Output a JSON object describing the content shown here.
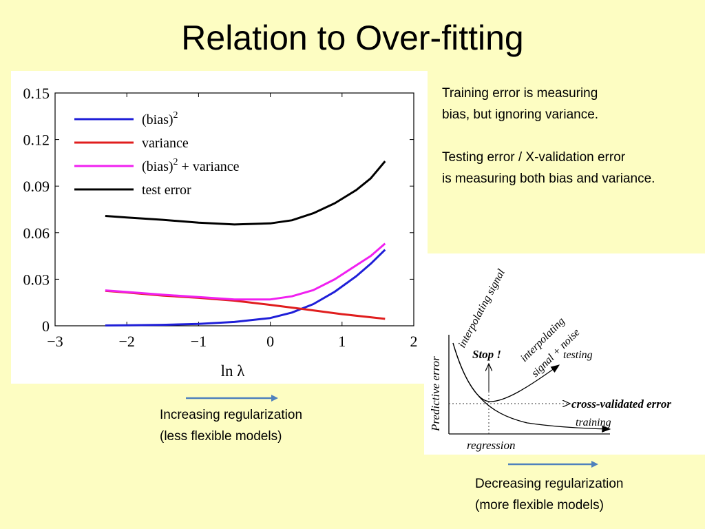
{
  "slide": {
    "title": "Relation to Over-fitting"
  },
  "side_note": {
    "line1": "Training error is measuring",
    "line2": "bias, but ignoring variance.",
    "line3": "Testing error / X-validation error",
    "line4": "is measuring both bias and variance."
  },
  "captions": {
    "left_line1": "Increasing regularization",
    "left_line2": "(less flexible models)",
    "right_line1": "Decreasing regularization",
    "right_line2": "(more flexible models)"
  },
  "colors": {
    "background": "#fdfdc2",
    "arrow": "#4f81bd",
    "bias2": "#1f1fd8",
    "variance": "#e01e1e",
    "sum": "#f020f0",
    "test": "#000000"
  },
  "chart_data": [
    {
      "type": "line",
      "title": "",
      "xlabel": "ln λ",
      "ylabel": "",
      "xlim": [
        -3,
        2
      ],
      "ylim": [
        0,
        0.15
      ],
      "x_ticks": [
        -3,
        -2,
        -1,
        0,
        1,
        2
      ],
      "x_tick_labels": [
        "−3",
        "−2",
        "−1",
        "0",
        "1",
        "2"
      ],
      "y_ticks": [
        0,
        0.03,
        0.06,
        0.09,
        0.12,
        0.15
      ],
      "y_tick_labels": [
        "0",
        "0.03",
        "0.06",
        "0.09",
        "0.12",
        "0.15"
      ],
      "grid": false,
      "legend_placement": "top-left",
      "series": [
        {
          "name": "(bias)",
          "name_superscript": "2",
          "color": "#1f1fd8",
          "x": [
            -2.3,
            -2.0,
            -1.5,
            -1.0,
            -0.5,
            0.0,
            0.3,
            0.6,
            0.9,
            1.2,
            1.4,
            1.6
          ],
          "y": [
            0.0002,
            0.0003,
            0.0006,
            0.0012,
            0.0025,
            0.005,
            0.0085,
            0.014,
            0.022,
            0.032,
            0.04,
            0.049
          ]
        },
        {
          "name": "variance",
          "name_superscript": "",
          "color": "#e01e1e",
          "x": [
            -2.3,
            -2.0,
            -1.5,
            -1.0,
            -0.5,
            0.0,
            0.5,
            1.0,
            1.3,
            1.6
          ],
          "y": [
            0.0225,
            0.0215,
            0.0195,
            0.018,
            0.0162,
            0.0135,
            0.0105,
            0.0075,
            0.006,
            0.0045
          ]
        },
        {
          "name": "(bias)",
          "name_superscript": "2",
          "name_suffix": " + variance",
          "color": "#f020f0",
          "x": [
            -2.3,
            -2.0,
            -1.5,
            -1.0,
            -0.5,
            0.0,
            0.3,
            0.6,
            0.9,
            1.2,
            1.4,
            1.6
          ],
          "y": [
            0.0228,
            0.0218,
            0.02,
            0.0185,
            0.017,
            0.017,
            0.019,
            0.023,
            0.03,
            0.039,
            0.045,
            0.053
          ]
        },
        {
          "name": "test error",
          "name_superscript": "",
          "color": "#000000",
          "x": [
            -2.3,
            -2.0,
            -1.5,
            -1.0,
            -0.5,
            0.0,
            0.3,
            0.6,
            0.9,
            1.2,
            1.4,
            1.6
          ],
          "y": [
            0.0708,
            0.0698,
            0.0683,
            0.0665,
            0.0653,
            0.066,
            0.068,
            0.0725,
            0.079,
            0.0875,
            0.095,
            0.106
          ]
        }
      ]
    },
    {
      "type": "line",
      "title": "",
      "xlabel": "regression",
      "ylabel": "Predictive error",
      "series": [
        {
          "name": "testing"
        },
        {
          "name": "training"
        }
      ],
      "annotations": [
        {
          "text": "interpolating signal"
        },
        {
          "text_line1": "interpolating",
          "text_line2": "signal + noise"
        },
        {
          "text": "Stop !"
        },
        {
          "text": "cross-validated error"
        }
      ]
    }
  ]
}
